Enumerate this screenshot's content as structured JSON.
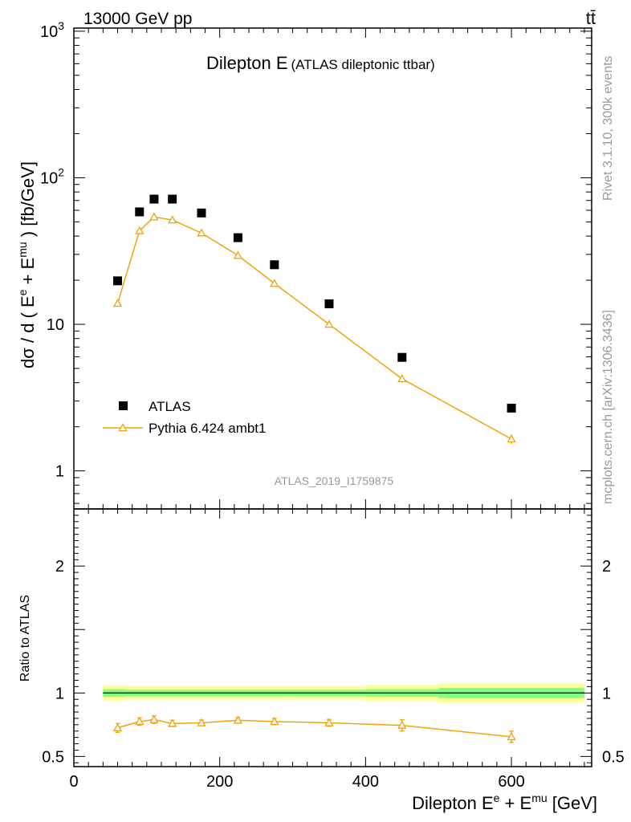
{
  "header": {
    "left": "13000 GeV pp",
    "right": "tt̄"
  },
  "side_text": {
    "upper": "Rivet 3.1.10,  300k events",
    "lower": "mcplots.cern.ch [arXiv:1306.3436]"
  },
  "chart_data": [
    {
      "type": "scatter",
      "title": "Dilepton E",
      "subtitle": "(ATLAS dileptonic ttbar)",
      "ylabel": "dσ / d ( E^e + E^mu ) [fb/GeV]",
      "yscale": "log",
      "xlim": [
        0,
        710
      ],
      "ylim": [
        0.55,
        1050
      ],
      "y_ticks": [
        {
          "value": 1,
          "label": "1"
        },
        {
          "value": 10,
          "label": "10"
        },
        {
          "value": 100,
          "label": "10^2"
        },
        {
          "value": 1000,
          "label": "10^3"
        }
      ],
      "watermark": "ATLAS_2019_I1759875",
      "legend_position": "lower-left",
      "colors": {
        "data": "#000000",
        "mc": "#f0a30a"
      },
      "series": [
        {
          "name": "ATLAS",
          "style": "markers",
          "x": [
            60,
            90,
            110,
            135,
            175,
            225,
            275,
            350,
            450,
            600
          ],
          "values": [
            19.8,
            58.5,
            71.5,
            71.5,
            57.5,
            39.0,
            25.5,
            13.8,
            5.95,
            2.68
          ]
        },
        {
          "name": "Pythia 6.424 ambt1",
          "style": "line-triangles",
          "x": [
            60,
            90,
            110,
            135,
            175,
            225,
            275,
            350,
            450,
            600
          ],
          "values": [
            13.9,
            43.5,
            54.0,
            51.5,
            42.0,
            29.5,
            19.0,
            10.0,
            4.25,
            1.65
          ],
          "err": [
            0.6,
            1.5,
            1.5,
            1.5,
            1.0,
            0.8,
            0.5,
            0.3,
            0.25,
            0.12
          ]
        }
      ]
    },
    {
      "type": "line",
      "ylabel": "Ratio to ATLAS",
      "xlabel": "Dilepton E^e + E^mu [GeV]",
      "xlim": [
        0,
        710
      ],
      "ylim": [
        0.42,
        2.45
      ],
      "x_ticks": [
        {
          "value": 0,
          "label": "0"
        },
        {
          "value": 200,
          "label": "200"
        },
        {
          "value": 400,
          "label": "400"
        },
        {
          "value": 600,
          "label": "600"
        }
      ],
      "y_ticks": [
        {
          "value": 0.5,
          "label": "0.5"
        },
        {
          "value": 1,
          "label": "1"
        },
        {
          "value": 2,
          "label": "2"
        }
      ],
      "bands": {
        "edges": [
          40,
          70,
          300,
          400,
          500,
          700
        ],
        "yellow": [
          0.06,
          0.055,
          0.055,
          0.065,
          0.075
        ],
        "green": [
          0.03,
          0.025,
          0.025,
          0.03,
          0.04
        ]
      },
      "series": [
        {
          "name": "Pythia 6.424 ambt1",
          "x": [
            60,
            90,
            110,
            135,
            175,
            225,
            275,
            350,
            450,
            600
          ],
          "values": [
            0.725,
            0.775,
            0.79,
            0.76,
            0.765,
            0.785,
            0.775,
            0.765,
            0.745,
            0.655
          ],
          "err": [
            0.035,
            0.03,
            0.03,
            0.025,
            0.022,
            0.022,
            0.025,
            0.027,
            0.045,
            0.045
          ]
        }
      ]
    }
  ]
}
